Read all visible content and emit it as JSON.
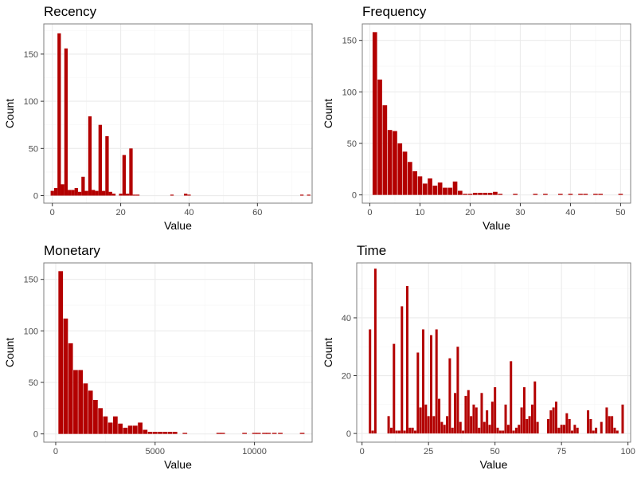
{
  "colors": {
    "bar": "#b30000",
    "panel_border": "#7f7f7f",
    "grid_major": "#ebebeb",
    "grid_minor": "#f5f5f5",
    "tick_text": "#4d4d4d"
  },
  "chart_data": [
    {
      "id": "recency",
      "type": "bar",
      "title": "Recency",
      "xlabel": "Value",
      "ylabel": "Count",
      "grid": true,
      "xlim": [
        -2.5,
        76
      ],
      "ylim": [
        -8,
        182
      ],
      "xticks": [
        0,
        20,
        40,
        60
      ],
      "xtick_labels": [
        "0",
        "20",
        "40",
        "60"
      ],
      "yticks": [
        0,
        50,
        100,
        150
      ],
      "ytick_labels": [
        "0",
        "50",
        "100",
        "150"
      ],
      "bin_width": 1,
      "x": [
        0,
        1,
        2,
        3,
        4,
        5,
        6,
        7,
        8,
        9,
        10,
        11,
        12,
        13,
        14,
        15,
        16,
        17,
        18,
        20,
        21,
        22,
        23,
        24,
        25,
        35,
        39,
        40,
        73,
        75
      ],
      "values": [
        5,
        8,
        172,
        12,
        156,
        6,
        6,
        8,
        4,
        20,
        5,
        84,
        6,
        5,
        75,
        5,
        63,
        4,
        2,
        2,
        43,
        2,
        50,
        1,
        1,
        1,
        2,
        1,
        1,
        1
      ]
    },
    {
      "id": "frequency",
      "type": "bar",
      "title": "Frequency",
      "xlabel": "Value",
      "ylabel": "Count",
      "grid": true,
      "xlim": [
        -1.5,
        52
      ],
      "ylim": [
        -8,
        166
      ],
      "xticks": [
        0,
        10,
        20,
        30,
        40,
        50
      ],
      "xtick_labels": [
        "0",
        "10",
        "20",
        "30",
        "40",
        "50"
      ],
      "yticks": [
        0,
        50,
        100,
        150
      ],
      "ytick_labels": [
        "0",
        "50",
        "100",
        "150"
      ],
      "bin_width": 0.9,
      "x": [
        1,
        2,
        3,
        4,
        5,
        6,
        7,
        8,
        9,
        10,
        11,
        12,
        13,
        14,
        15,
        16,
        17,
        18,
        19,
        20,
        21,
        22,
        23,
        24,
        25,
        26,
        29,
        33,
        35,
        38,
        40,
        42,
        43,
        45,
        46,
        50
      ],
      "values": [
        158,
        112,
        87,
        63,
        62,
        50,
        42,
        32,
        23,
        18,
        11,
        16,
        9,
        12,
        7,
        7,
        13,
        4,
        1,
        1,
        2,
        2,
        2,
        2,
        3,
        1,
        1,
        1,
        1,
        1,
        1,
        1,
        1,
        1,
        1,
        1
      ]
    },
    {
      "id": "monetary",
      "type": "bar",
      "title": "Monetary",
      "xlabel": "Value",
      "ylabel": "Count",
      "grid": true,
      "xlim": [
        -600,
        12900
      ],
      "ylim": [
        -8,
        166
      ],
      "xticks": [
        0,
        5000,
        10000
      ],
      "xtick_labels": [
        "0",
        "5000",
        "10000"
      ],
      "yticks": [
        0,
        50,
        100,
        150
      ],
      "ytick_labels": [
        "0",
        "50",
        "100",
        "150"
      ],
      "bin_width": 230,
      "x": [
        250,
        500,
        750,
        1000,
        1250,
        1500,
        1750,
        2000,
        2250,
        2500,
        2750,
        3000,
        3250,
        3500,
        3750,
        4000,
        4250,
        4500,
        4750,
        5000,
        5250,
        5500,
        5750,
        6000,
        6500,
        8200,
        8400,
        9500,
        10000,
        10200,
        10500,
        10700,
        11000,
        11300,
        12400
      ],
      "values": [
        158,
        112,
        88,
        62,
        62,
        49,
        42,
        33,
        25,
        17,
        11,
        17,
        10,
        6,
        8,
        8,
        11,
        4,
        2,
        2,
        2,
        2,
        2,
        2,
        1,
        1,
        1,
        1,
        1,
        1,
        1,
        1,
        1,
        1,
        1
      ]
    },
    {
      "id": "time",
      "type": "bar",
      "title": "Time",
      "xlabel": "Value",
      "ylabel": "Count",
      "grid": true,
      "xlim": [
        -2,
        101
      ],
      "ylim": [
        -3,
        59
      ],
      "xticks": [
        0,
        25,
        50,
        75,
        100
      ],
      "xtick_labels": [
        "0",
        "25",
        "50",
        "75",
        "100"
      ],
      "yticks": [
        0,
        20,
        40
      ],
      "ytick_labels": [
        "0",
        "20",
        "40"
      ],
      "bin_width": 0.9,
      "x": [
        3,
        4,
        5,
        10,
        11,
        12,
        13,
        14,
        15,
        16,
        17,
        18,
        19,
        20,
        21,
        22,
        23,
        24,
        25,
        26,
        27,
        28,
        29,
        30,
        31,
        32,
        33,
        34,
        35,
        36,
        37,
        38,
        39,
        40,
        41,
        42,
        43,
        44,
        45,
        46,
        47,
        48,
        49,
        50,
        51,
        52,
        53,
        54,
        55,
        56,
        57,
        58,
        59,
        60,
        61,
        62,
        63,
        64,
        65,
        66,
        70,
        71,
        72,
        73,
        74,
        75,
        76,
        77,
        78,
        79,
        80,
        81,
        85,
        86,
        87,
        88,
        90,
        92,
        93,
        94,
        95,
        96,
        98
      ],
      "values": [
        36,
        1,
        57,
        6,
        2,
        31,
        1,
        1,
        44,
        1,
        51,
        2,
        2,
        1,
        28,
        9,
        36,
        10,
        6,
        34,
        6,
        36,
        12,
        4,
        3,
        6,
        26,
        2,
        14,
        30,
        4,
        1,
        13,
        15,
        6,
        10,
        9,
        2,
        14,
        4,
        8,
        3,
        11,
        16,
        2,
        1,
        1,
        10,
        3,
        25,
        1,
        2,
        3,
        9,
        16,
        5,
        6,
        10,
        18,
        4,
        5,
        8,
        9,
        11,
        2,
        3,
        3,
        7,
        5,
        1,
        3,
        2,
        8,
        5,
        1,
        2,
        4,
        9,
        6,
        6,
        2,
        1,
        10
      ]
    }
  ]
}
